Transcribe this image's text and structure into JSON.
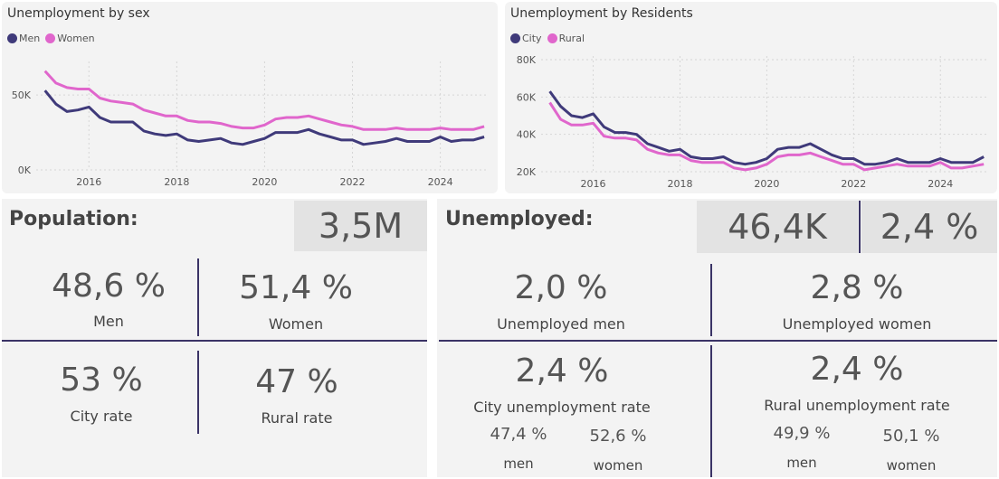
{
  "colors": {
    "men": "#3f3a7a",
    "women": "#e066cc",
    "city": "#3f3a7a",
    "rural": "#e066cc",
    "divider": "#3a3366"
  },
  "chart_sex": {
    "title": "Unemployment by sex",
    "legend": [
      "Men",
      "Women"
    ]
  },
  "chart_residents": {
    "title": "Unemployment by Residents",
    "legend": [
      "City",
      "Rural"
    ]
  },
  "chart_data": [
    {
      "type": "line",
      "title": "Unemployment by sex",
      "x_ticks": [
        "2016",
        "2018",
        "2020",
        "2022",
        "2024"
      ],
      "y_ticks": [
        "0K",
        "50K"
      ],
      "ylim": [
        0,
        70000
      ],
      "xlim": [
        2014.8,
        2025.1
      ],
      "grid": true,
      "legend_position": "top-left",
      "x": [
        2015.0,
        2015.25,
        2015.5,
        2015.75,
        2016.0,
        2016.25,
        2016.5,
        2016.75,
        2017.0,
        2017.25,
        2017.5,
        2017.75,
        2018.0,
        2018.25,
        2018.5,
        2018.75,
        2019.0,
        2019.25,
        2019.5,
        2019.75,
        2020.0,
        2020.25,
        2020.5,
        2020.75,
        2021.0,
        2021.25,
        2021.5,
        2021.75,
        2022.0,
        2022.25,
        2022.5,
        2022.75,
        2023.0,
        2023.25,
        2023.5,
        2023.75,
        2024.0,
        2024.25,
        2024.5,
        2024.75,
        2025.0
      ],
      "series": [
        {
          "name": "Men",
          "values": [
            53000,
            44000,
            39000,
            40000,
            42000,
            35000,
            32000,
            32000,
            32000,
            26000,
            24000,
            23000,
            24000,
            20000,
            19000,
            20000,
            21000,
            18000,
            17000,
            19000,
            21000,
            25000,
            25000,
            25000,
            27000,
            24000,
            22000,
            20000,
            20000,
            17000,
            18000,
            19000,
            21000,
            19000,
            19000,
            19000,
            22000,
            19000,
            20000,
            20000,
            22000
          ]
        },
        {
          "name": "Women",
          "values": [
            66000,
            58000,
            55000,
            54000,
            54000,
            48000,
            46000,
            45000,
            44000,
            40000,
            38000,
            36000,
            36000,
            33000,
            32000,
            32000,
            31000,
            29000,
            28000,
            28000,
            30000,
            34000,
            35000,
            35000,
            36000,
            34000,
            32000,
            30000,
            29000,
            27000,
            27000,
            27000,
            28000,
            27000,
            27000,
            27000,
            28000,
            27000,
            27000,
            27000,
            29000
          ]
        }
      ]
    },
    {
      "type": "line",
      "title": "Unemployment by Residents",
      "x_ticks": [
        "2016",
        "2018",
        "2020",
        "2022",
        "2024"
      ],
      "y_ticks": [
        "20K",
        "40K",
        "60K",
        "80K"
      ],
      "ylim": [
        20000,
        80000
      ],
      "xlim": [
        2014.8,
        2025.1
      ],
      "grid": true,
      "legend_position": "top-left",
      "x": [
        2015.0,
        2015.25,
        2015.5,
        2015.75,
        2016.0,
        2016.25,
        2016.5,
        2016.75,
        2017.0,
        2017.25,
        2017.5,
        2017.75,
        2018.0,
        2018.25,
        2018.5,
        2018.75,
        2019.0,
        2019.25,
        2019.5,
        2019.75,
        2020.0,
        2020.25,
        2020.5,
        2020.75,
        2021.0,
        2021.25,
        2021.5,
        2021.75,
        2022.0,
        2022.25,
        2022.5,
        2022.75,
        2023.0,
        2023.25,
        2023.5,
        2023.75,
        2024.0,
        2024.25,
        2024.5,
        2024.75,
        2025.0
      ],
      "series": [
        {
          "name": "City",
          "values": [
            63000,
            55000,
            50000,
            49000,
            51000,
            44000,
            41000,
            41000,
            40000,
            35000,
            33000,
            31000,
            32000,
            28000,
            27000,
            27000,
            28000,
            25000,
            24000,
            25000,
            27000,
            32000,
            33000,
            33000,
            35000,
            32000,
            29000,
            27000,
            27000,
            24000,
            24000,
            25000,
            27000,
            25000,
            25000,
            25000,
            27000,
            25000,
            25000,
            25000,
            28000
          ]
        },
        {
          "name": "Rural",
          "values": [
            57000,
            48000,
            45000,
            45000,
            46000,
            39000,
            38000,
            38000,
            37000,
            32000,
            30000,
            29000,
            29000,
            26000,
            25000,
            25000,
            25000,
            22000,
            21000,
            22000,
            24000,
            28000,
            29000,
            29000,
            30000,
            28000,
            26000,
            24000,
            24000,
            21000,
            22000,
            23000,
            24000,
            23000,
            23000,
            23000,
            25000,
            22000,
            22000,
            23000,
            24000
          ]
        }
      ]
    }
  ],
  "population": {
    "title": "Population:",
    "total": "3,5M",
    "men_value": "48,6 %",
    "men_label": "Men",
    "women_value": "51,4 %",
    "women_label": "Women",
    "city_value": "53 %",
    "city_label": "City rate",
    "rural_value": "47 %",
    "rural_label": "Rural rate"
  },
  "unemployed": {
    "title": "Unemployed:",
    "total": "46,4K",
    "rate": "2,4 %",
    "men_value": "2,0 %",
    "men_label": "Unemployed men",
    "women_value": "2,8 %",
    "women_label": "Unemployed women",
    "city_value": "2,4 %",
    "city_label": "City unemployment rate",
    "city_men_value": "47,4 %",
    "city_men_label": "men",
    "city_women_value": "52,6 %",
    "city_women_label": "women",
    "rural_value": "2,4 %",
    "rural_label": "Rural unemployment rate",
    "rural_men_value": "49,9 %",
    "rural_men_label": "men",
    "rural_women_value": "50,1 %",
    "rural_women_label": "women"
  }
}
